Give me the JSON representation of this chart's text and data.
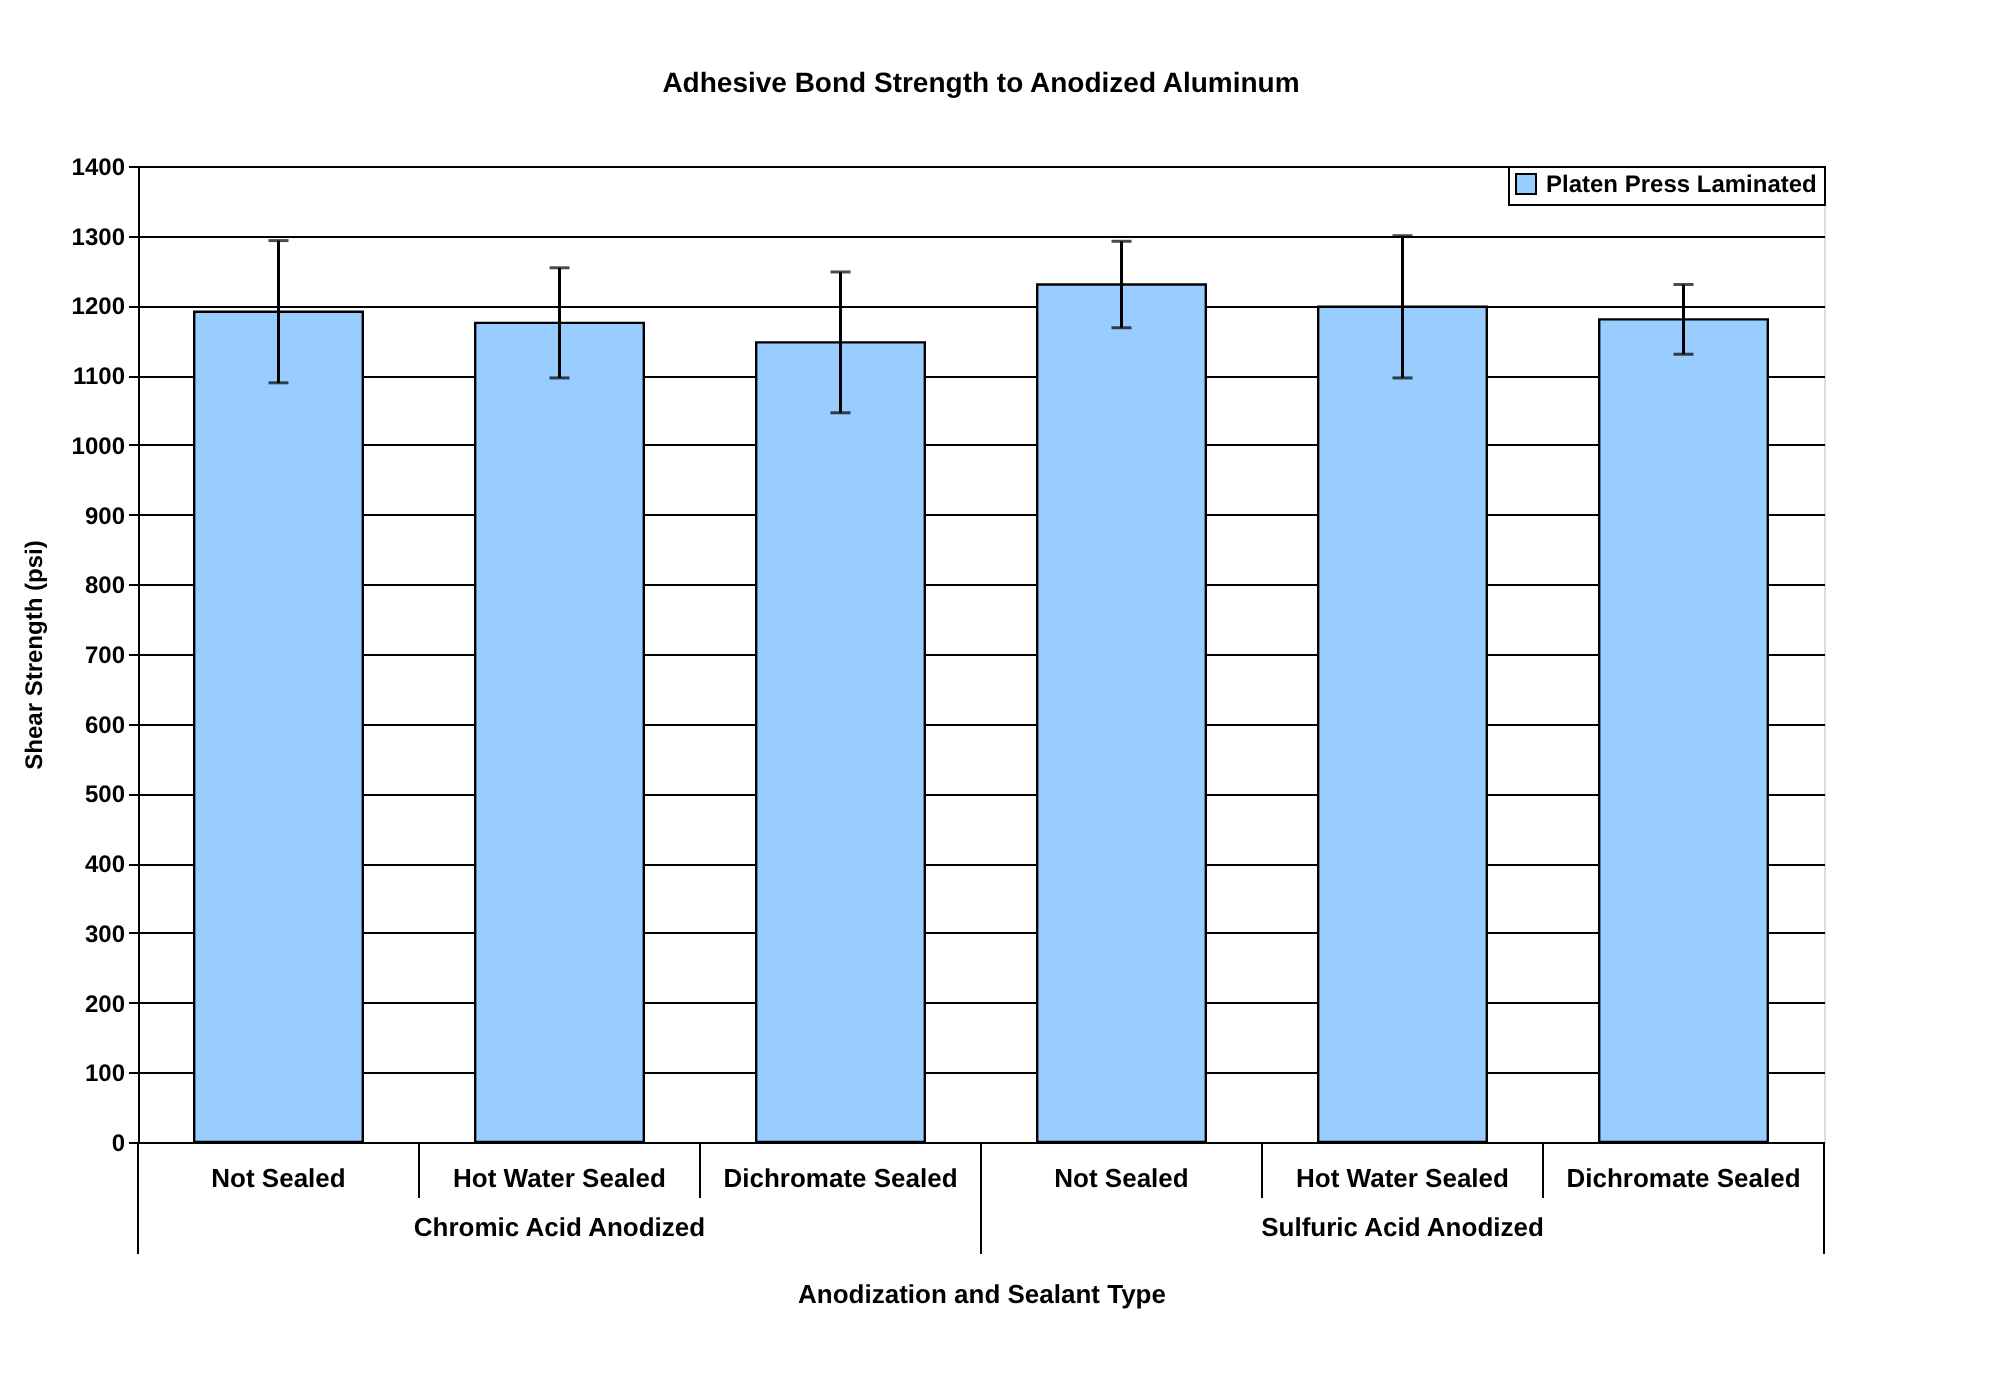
{
  "chart_data": {
    "type": "bar",
    "title": "Adhesive Bond Strength to Anodized Aluminum",
    "xlabel": "Anodization and Sealant Type",
    "ylabel": "Shear Strength (psi)",
    "categories": [
      "Not Sealed",
      "Hot Water Sealed",
      "Dichromate Sealed",
      "Not Sealed",
      "Hot Water Sealed",
      "Dichromate Sealed"
    ],
    "annotations": [
      "Chromic Acid Anodized",
      "Sulfuric Acid Anodized"
    ],
    "series": [
      {
        "name": "Platen Press Laminated",
        "color": "#99ccff",
        "values": [
          1191,
          1175,
          1147,
          1230,
          1198,
          1180
        ],
        "errors": [
          102,
          79,
          101,
          62,
          102,
          50
        ]
      }
    ],
    "ylim": [
      0,
      1400
    ],
    "yticks": [
      0,
      100,
      200,
      300,
      400,
      500,
      600,
      700,
      800,
      900,
      1000,
      1100,
      1200,
      1300,
      1400
    ],
    "grid": "y",
    "legend": "top right"
  }
}
